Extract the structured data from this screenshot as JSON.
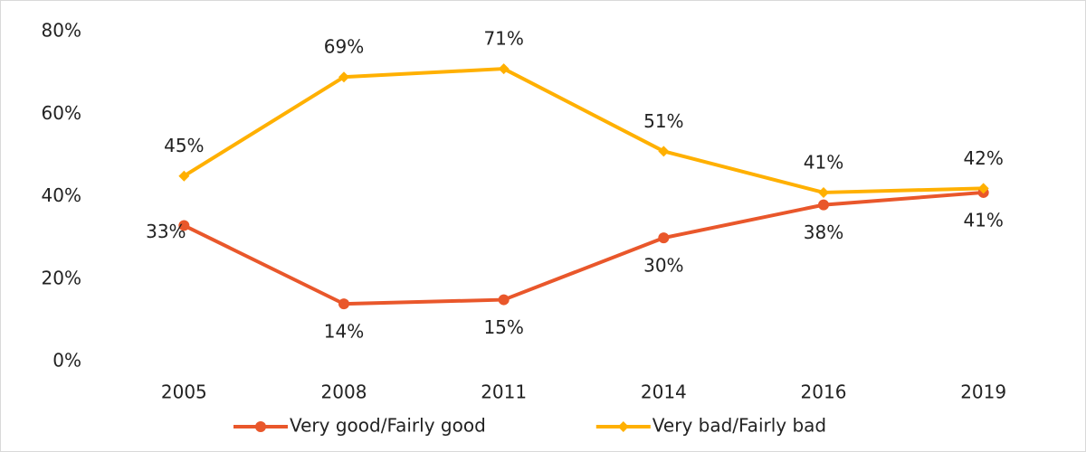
{
  "chart_data": {
    "type": "line",
    "categories": [
      "2005",
      "2008",
      "2011",
      "2014",
      "2016",
      "2019"
    ],
    "series": [
      {
        "name": "Very good/Fairly good",
        "color": "#e9572b",
        "marker": "circle",
        "values": [
          33,
          14,
          15,
          30,
          38,
          41
        ],
        "value_labels": [
          "33%",
          "14%",
          "15%",
          "30%",
          "38%",
          "41%"
        ]
      },
      {
        "name": "Very bad/Fairly bad",
        "color": "#ffb000",
        "marker": "diamond",
        "values": [
          45,
          69,
          71,
          51,
          41,
          42
        ],
        "value_labels": [
          "45%",
          "69%",
          "71%",
          "51%",
          "41%",
          "42%"
        ]
      }
    ],
    "ylim": [
      0,
      80
    ],
    "yticks": [
      {
        "value": 0,
        "label": "0%"
      },
      {
        "value": 20,
        "label": "20%"
      },
      {
        "value": 40,
        "label": "40%"
      },
      {
        "value": 60,
        "label": "60%"
      },
      {
        "value": 80,
        "label": "80%"
      }
    ],
    "grid": false,
    "legend": "bottom"
  }
}
